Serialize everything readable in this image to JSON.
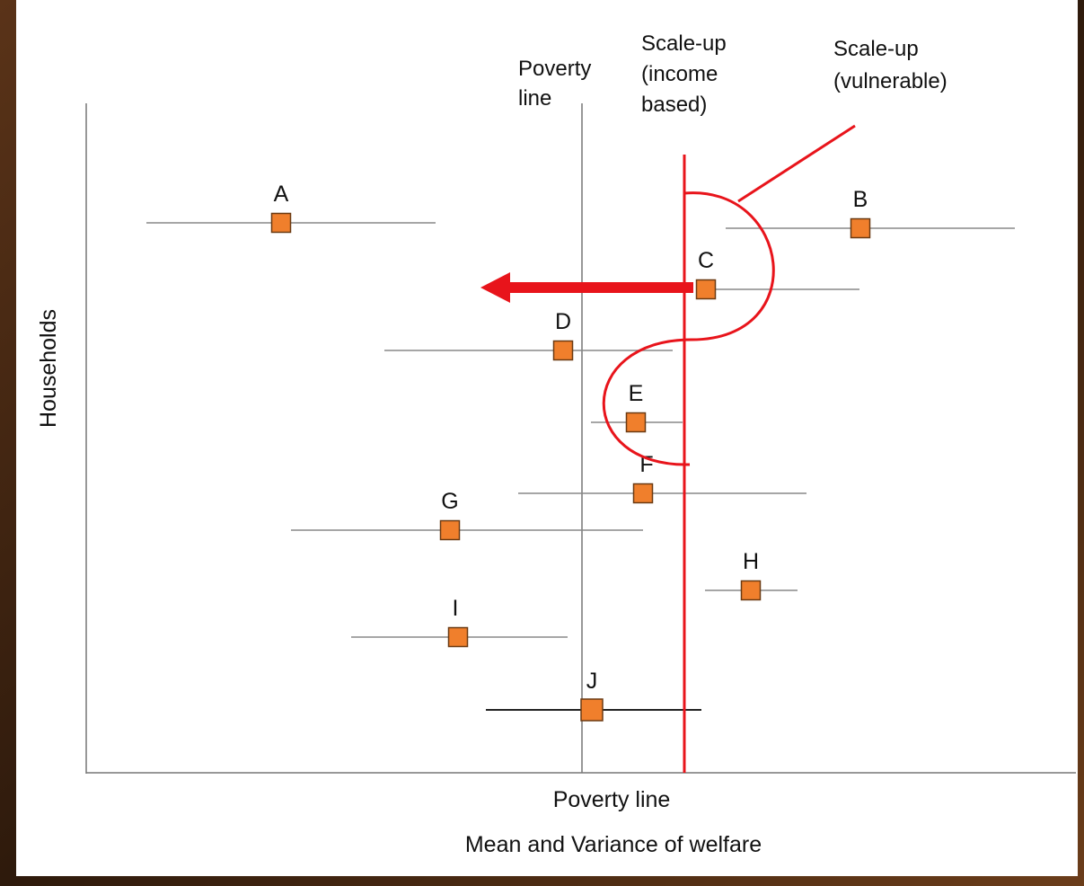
{
  "annotations": {
    "poverty_line": [
      "Poverty",
      "line"
    ],
    "scale_up_income": [
      "Scale-up",
      "(income",
      "based)"
    ],
    "scale_up_vulnerable": [
      "Scale-up",
      "(vulnerable)"
    ]
  },
  "axes": {
    "y_label": "Households",
    "x_label": [
      "Poverty line",
      "Mean and Variance of welfare"
    ]
  },
  "nodes": [
    {
      "label": "A"
    },
    {
      "label": "B"
    },
    {
      "label": "C"
    },
    {
      "label": "D"
    },
    {
      "label": "E"
    },
    {
      "label": "F"
    },
    {
      "label": "G"
    },
    {
      "label": "H"
    },
    {
      "label": "I"
    },
    {
      "label": "J"
    }
  ]
}
